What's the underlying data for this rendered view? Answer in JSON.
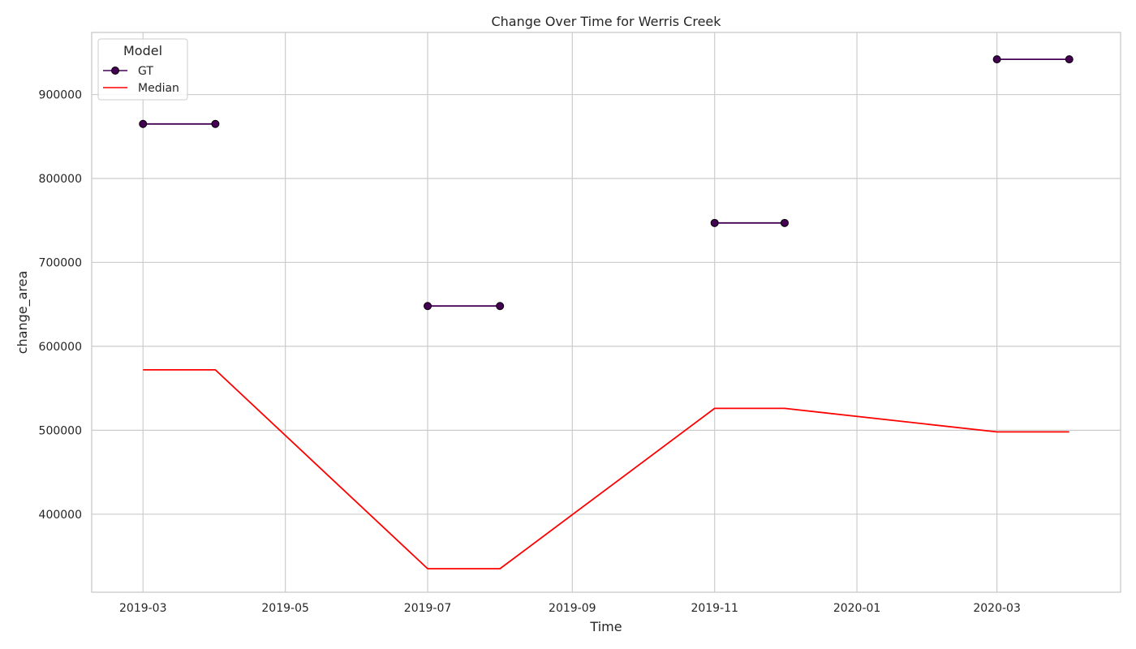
{
  "chart_data": {
    "type": "line",
    "title": "Change Over Time for Werris Creek",
    "xlabel": "Time",
    "ylabel": "change_area",
    "xlim": [
      "2019-02-07",
      "2020-04-23"
    ],
    "ylim": [
      307000,
      974000
    ],
    "grid": true,
    "x_ticks": [
      "2019-03",
      "2019-05",
      "2019-07",
      "2019-09",
      "2019-11",
      "2020-01",
      "2020-03"
    ],
    "y_ticks": [
      400000,
      500000,
      600000,
      700000,
      800000,
      900000
    ],
    "legend": {
      "title": "Model",
      "position": "top-left"
    },
    "series": [
      {
        "name": "GT",
        "color": "#440154",
        "marker": "circle",
        "segments": [
          [
            {
              "x": "2019-03-01",
              "y": 865000
            },
            {
              "x": "2019-04-01",
              "y": 865000
            }
          ],
          [
            {
              "x": "2019-07-01",
              "y": 648000
            },
            {
              "x": "2019-08-01",
              "y": 648000
            }
          ],
          [
            {
              "x": "2019-11-01",
              "y": 747000
            },
            {
              "x": "2019-12-01",
              "y": 747000
            }
          ],
          [
            {
              "x": "2020-03-01",
              "y": 942000
            },
            {
              "x": "2020-04-01",
              "y": 942000
            }
          ]
        ]
      },
      {
        "name": "Median",
        "color": "#ff0000",
        "marker": "none",
        "segments": [
          [
            {
              "x": "2019-03-01",
              "y": 572000
            },
            {
              "x": "2019-04-01",
              "y": 572000
            },
            {
              "x": "2019-07-01",
              "y": 335000
            },
            {
              "x": "2019-08-01",
              "y": 335000
            },
            {
              "x": "2019-11-01",
              "y": 526000
            },
            {
              "x": "2019-12-01",
              "y": 526000
            },
            {
              "x": "2020-03-01",
              "y": 498000
            },
            {
              "x": "2020-04-01",
              "y": 498000
            }
          ]
        ]
      }
    ]
  }
}
